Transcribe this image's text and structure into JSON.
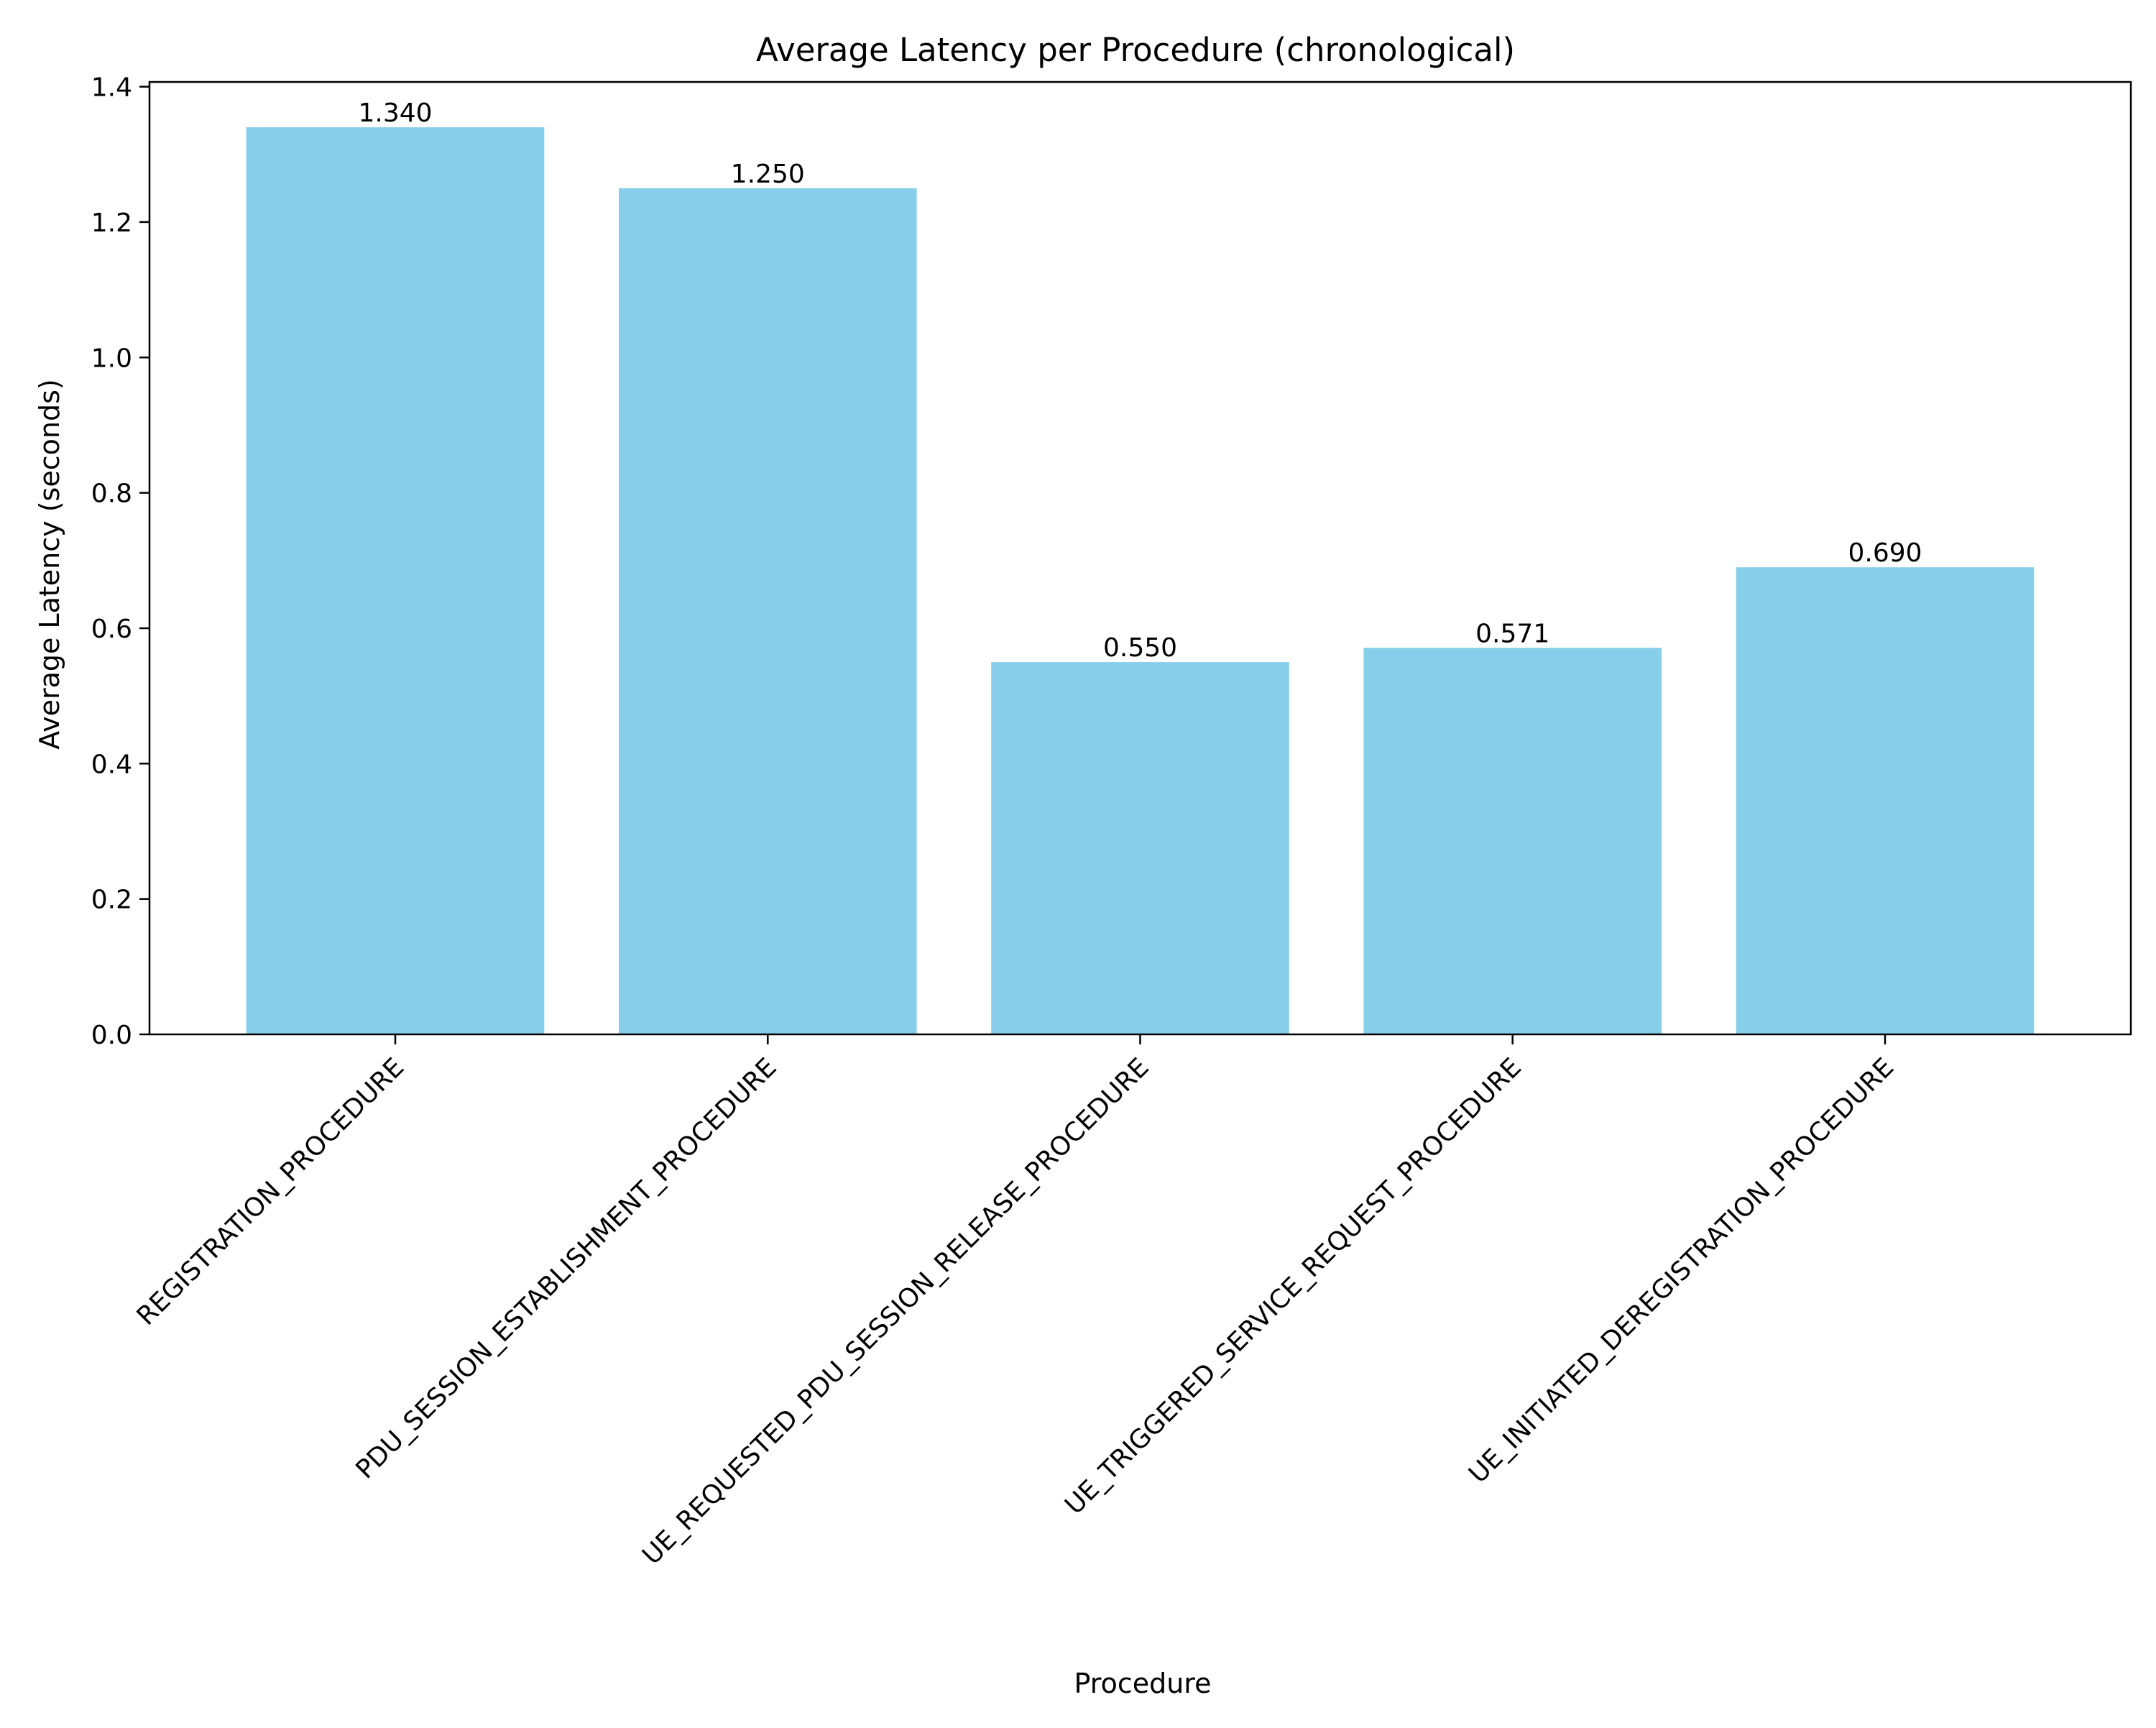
{
  "chart_data": {
    "type": "bar",
    "title": "Average Latency per Procedure (chronological)",
    "xlabel": "Procedure",
    "ylabel": "Average Latency (seconds)",
    "categories": [
      "REGISTRATION_PROCEDURE",
      "PDU_SESSION_ESTABLISHMENT_PROCEDURE",
      "UE_REQUESTED_PDU_SESSION_RELEASE_PROCEDURE",
      "UE_TRIGGERED_SERVICE_REQUEST_PROCEDURE",
      "UE_INITIATED_DEREGISTRATION_PROCEDURE"
    ],
    "values": [
      1.34,
      1.25,
      0.55,
      0.571,
      0.69
    ],
    "data_labels": [
      "1.340",
      "1.250",
      "0.550",
      "0.571",
      "0.690"
    ],
    "yticks": [
      "0.0",
      "0.2",
      "0.4",
      "0.6",
      "0.8",
      "1.0",
      "1.2",
      "1.4"
    ],
    "ylim": [
      0,
      1.407
    ],
    "grid": false,
    "colors": {
      "bar": "#87CEEB",
      "axis": "#000000"
    }
  }
}
